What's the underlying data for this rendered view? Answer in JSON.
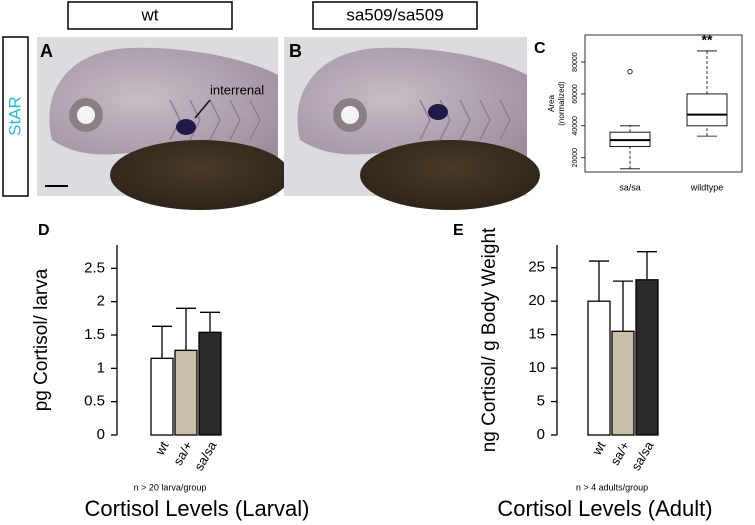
{
  "header_labels": [
    "wt",
    "sa509/sa509"
  ],
  "row_label": "StAR",
  "panel_labels": [
    "A",
    "B",
    "C",
    "D",
    "E"
  ],
  "image_annotation": "interrenal",
  "chart_data": [
    {
      "type": "box",
      "ylabel": [
        "Area",
        "(normalized)"
      ],
      "categories": [
        "sa/sa",
        "wildtype"
      ],
      "boxes": [
        {
          "min": 13000,
          "q1": 27000,
          "median": 31000,
          "q3": 36000,
          "max": 40000,
          "outliers": [
            74000
          ]
        },
        {
          "min": 33500,
          "q1": 40000,
          "median": 47000,
          "q3": 60000,
          "max": 87000,
          "outliers": []
        }
      ],
      "significance": "**",
      "ylim": [
        11000,
        97000
      ],
      "yticks": [
        20000,
        40000,
        60000,
        80000
      ]
    },
    {
      "type": "bar",
      "title": "Cortisol Levels (Larval)",
      "ylabel": "pg Cortisol/ larva",
      "note": "n > 20 larva/group",
      "categories": [
        "wt",
        "sa/+",
        "sa/sa"
      ],
      "values": [
        1.15,
        1.27,
        1.54
      ],
      "errors": [
        0.48,
        0.63,
        0.3
      ],
      "colors": [
        "#ffffff",
        "#c9bea8",
        "#2a2a2a"
      ],
      "ylim": [
        0,
        2.85
      ],
      "yticks": [
        0,
        0.5,
        1,
        1.5,
        2,
        2.5
      ]
    },
    {
      "type": "bar",
      "title": "Cortisol Levels (Adult)",
      "ylabel": "ng Cortisol/ g Body Weight",
      "note": "n > 4 adults/group",
      "categories": [
        "wt",
        "sa/+",
        "sa/sa"
      ],
      "values": [
        20,
        15.5,
        23.2
      ],
      "errors": [
        6,
        7.5,
        4.2
      ],
      "colors": [
        "#ffffff",
        "#c9bea8",
        "#2a2a2a"
      ],
      "ylim": [
        0,
        28.4
      ],
      "yticks": [
        0,
        5,
        10,
        15,
        20,
        25
      ]
    }
  ]
}
